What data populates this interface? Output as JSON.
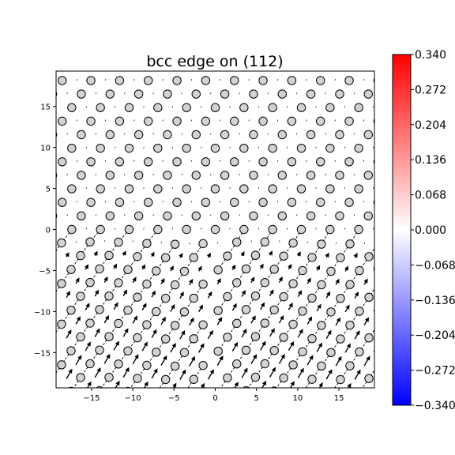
{
  "chart_data": {
    "type": "scatter",
    "title": "bcc edge on (112)",
    "xlabel": "",
    "ylabel": "",
    "xlim": [
      -19.3,
      19.3
    ],
    "ylim": [
      -19.3,
      19.3
    ],
    "xticks": [
      -15,
      -10,
      -5,
      0,
      5,
      10,
      15
    ],
    "yticks": [
      -15,
      -10,
      -5,
      0,
      5,
      10,
      15
    ],
    "xtick_labels": [
      "−15",
      "−10",
      "−5",
      "0",
      "5",
      "10",
      "15"
    ],
    "ytick_labels": [
      "−15",
      "−10",
      "−5",
      "0",
      "5",
      "10",
      "15"
    ],
    "grid": false,
    "atom_lattice": {
      "row_spacing": 1.65,
      "columns_per_row_spacing": 3.48,
      "layer_shift": 1.16,
      "marker": "open circle",
      "marker_color": "#d3d3d3"
    },
    "dislocation": {
      "core_x": 0,
      "core_y": 0,
      "type": "edge"
    },
    "colorbar": {
      "colormap": "bwr",
      "min": -0.34,
      "max": 0.34,
      "ticks": [
        "0.340",
        "0.272",
        "0.204",
        "0.136",
        "0.068",
        "0.000",
        "−0.068",
        "−0.136",
        "−0.204",
        "−0.272",
        "−0.340"
      ],
      "colors": {
        "low": "#0000ff",
        "mid": "#ffffff",
        "high": "#ff0000"
      }
    }
  }
}
